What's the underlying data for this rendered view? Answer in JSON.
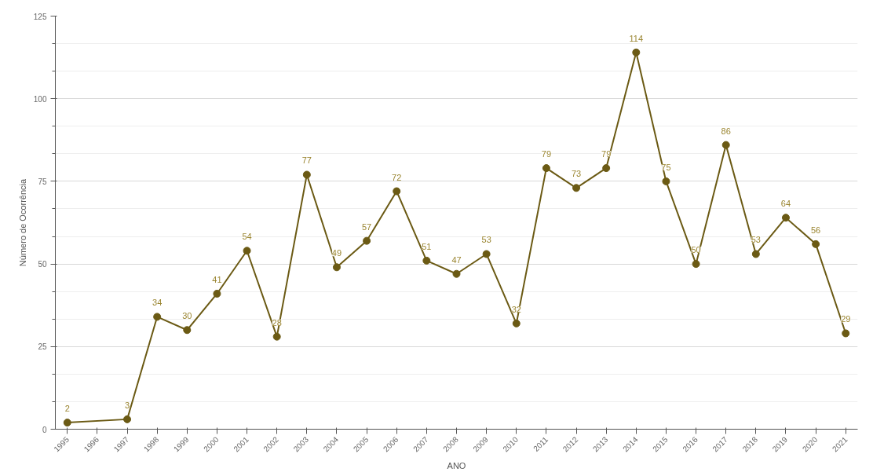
{
  "chart_data": {
    "type": "line",
    "xlabel": "ANO",
    "ylabel": "Número de Ocorrência",
    "x": [
      1995,
      1997,
      1998,
      1999,
      2000,
      2001,
      2002,
      2003,
      2004,
      2005,
      2006,
      2007,
      2008,
      2009,
      2010,
      2011,
      2012,
      2013,
      2014,
      2015,
      2016,
      2017,
      2018,
      2019,
      2020,
      2021
    ],
    "series": [
      {
        "color": "#6b5a14",
        "values": [
          2,
          3,
          34,
          30,
          41,
          54,
          28,
          77,
          49,
          57,
          72,
          51,
          47,
          53,
          32,
          79,
          73,
          79,
          114,
          75,
          50,
          86,
          53,
          64,
          56,
          29
        ]
      }
    ],
    "xlim": [
      1994.6,
      2021.4
    ],
    "xticks": [
      1995,
      1996,
      1997,
      1998,
      1999,
      2000,
      2001,
      2002,
      2003,
      2004,
      2005,
      2006,
      2007,
      2008,
      2009,
      2010,
      2011,
      2012,
      2013,
      2014,
      2015,
      2016,
      2017,
      2018,
      2019,
      2020,
      2021
    ],
    "ylim": [
      0,
      125
    ],
    "yticks": [
      0,
      25,
      50,
      75,
      100,
      125
    ],
    "grid": "y",
    "marker": "circle",
    "line_style": "solid",
    "data_labels": true
  }
}
